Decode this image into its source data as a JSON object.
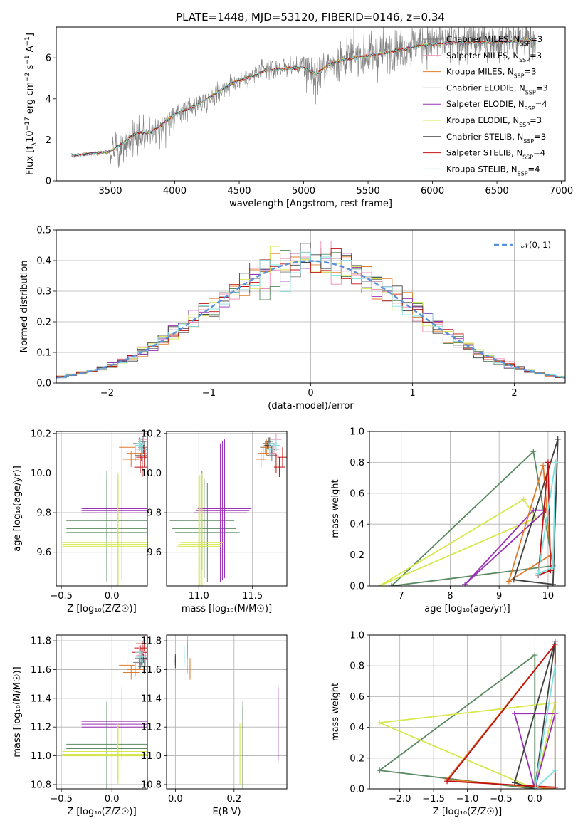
{
  "title": "PLATE=1448, MJD=53120, FIBERID=0146, z=0.34",
  "colors": {
    "data": "#808080",
    "normal_curve": "#5b8fd9",
    "grid": "#b0b0b0"
  },
  "models": [
    {
      "name": "Chabrier MILES",
      "nssp": "3",
      "color": "#7a7a7a",
      "z": [
        0.27,
        0.32,
        0.29
      ],
      "age": [
        10.15,
        10.13,
        10.09
      ],
      "mass": [
        11.65,
        11.62,
        11.68
      ],
      "ebv": 0.04,
      "zerr": 0.06,
      "aerr": 0.03,
      "merr": 0.05
    },
    {
      "name": "Salpeter MILES",
      "nssp": "3",
      "color": "#f08bb4",
      "z": [
        0.31,
        0.29,
        0.33
      ],
      "age": [
        10.17,
        10.12,
        10.1
      ],
      "mass": [
        11.72,
        11.7,
        11.67
      ],
      "ebv": 0.04,
      "zerr": 0.05,
      "aerr": 0.03,
      "merr": 0.05
    },
    {
      "name": "Kroupa MILES",
      "nssp": "3",
      "color": "#e07b2a",
      "z": [
        0.15,
        0.23,
        0.19
      ],
      "age": [
        10.13,
        10.1,
        10.07
      ],
      "mass": [
        11.63,
        11.6,
        11.58
      ],
      "ebv": 0.05,
      "zerr": 0.08,
      "aerr": 0.04,
      "merr": 0.05
    },
    {
      "name": "Chabrier ELODIE",
      "nssp": "3",
      "color": "#5a8a60",
      "z": [
        -0.05,
        -0.05,
        -0.05
      ],
      "age": [
        9.72,
        9.76,
        9.7
      ],
      "mass": [
        11.05,
        11.03,
        11.08
      ],
      "ebv": 0.23,
      "zerr": 0.4,
      "aerr": 0.25,
      "merr": 0.3
    },
    {
      "name": "Salpeter ELODIE",
      "nssp": "4",
      "color": "#9a2fb5",
      "z": [
        0.1,
        0.1,
        0.1
      ],
      "age": [
        9.81,
        9.8,
        9.82
      ],
      "mass": [
        11.22,
        11.2,
        11.24
      ],
      "ebv": 0.35,
      "zerr": 0.4,
      "aerr": 0.35,
      "merr": 0.25
    },
    {
      "name": "Kroupa ELODIE",
      "nssp": "3",
      "color": "#d6e84a",
      "z": [
        0.06,
        0.06,
        0.06
      ],
      "age": [
        9.64,
        9.63,
        9.65
      ],
      "mass": [
        11.01,
        11.0,
        11.03
      ],
      "ebv": 0.22,
      "zerr": 0.55,
      "aerr": 0.35,
      "merr": 0.2
    },
    {
      "name": "Chabrier STELIB",
      "nssp": "3",
      "color": "#404040",
      "z": [
        0.3,
        0.28,
        0.31
      ],
      "age": [
        10.16,
        10.14,
        10.12
      ],
      "mass": [
        11.66,
        11.64,
        11.68
      ],
      "ebv": 0.0,
      "zerr": 0.04,
      "aerr": 0.02,
      "merr": 0.03
    },
    {
      "name": "Salpeter STELIB",
      "nssp": "4",
      "color": "#c01010",
      "z": [
        0.3,
        0.28,
        0.32
      ],
      "age": [
        10.03,
        10.05,
        10.08
      ],
      "mass": [
        11.75,
        11.72,
        11.78
      ],
      "ebv": 0.04,
      "zerr": 0.08,
      "aerr": 0.05,
      "merr": 0.05
    },
    {
      "name": "Kroupa STELIB",
      "nssp": "4",
      "color": "#7fe0e0",
      "z": [
        0.28,
        0.3,
        0.27
      ],
      "age": [
        10.15,
        10.12,
        10.14
      ],
      "mass": [
        11.69,
        11.66,
        11.72
      ],
      "ebv": 0.03,
      "zerr": 0.04,
      "aerr": 0.03,
      "merr": 0.04
    }
  ],
  "panels": {
    "spectrum": {
      "xlabel": "wavelength [Angstrom, rest frame]",
      "ylabel_html": "Flux [f<tspan baseline-shift=\"sub\" font-size=\"9\">λ</tspan>10<tspan baseline-shift=\"super\" font-size=\"9\">−17</tspan> erg cm<tspan baseline-shift=\"super\" font-size=\"9\">−2</tspan> s<tspan baseline-shift=\"super\" font-size=\"9\">−1</tspan> A<tspan baseline-shift=\"super\" font-size=\"9\">−1</tspan>]",
      "xticks": [
        "3500",
        "4000",
        "4500",
        "5000",
        "5500",
        "6000",
        "6500",
        "7000"
      ],
      "yticks": [
        "0",
        "2",
        "4",
        "6"
      ],
      "xlim": [
        3080,
        7030
      ],
      "ylim": [
        0,
        7.5
      ]
    },
    "hist": {
      "xlabel": "(data-model)/error",
      "ylabel": "Normed distribution",
      "xticks": [
        "−2",
        "−1",
        "0",
        "1",
        "2"
      ],
      "yticks": [
        "0.0",
        "0.1",
        "0.2",
        "0.3",
        "0.4",
        "0.5"
      ],
      "legend": "𝒩(0, 1)",
      "xlim": [
        -2.5,
        2.5
      ],
      "ylim": [
        0,
        0.5
      ]
    },
    "z_age": {
      "xlabel": "Z [log₁₀(Z/Z☉)]",
      "ylabel": "age  [log₁₀(age/yr)]",
      "xticks": [
        "−0.5",
        "0.0"
      ],
      "yticks": [
        "9.6",
        "9.8",
        "10.0",
        "10.2"
      ],
      "xlim": [
        -0.55,
        0.35
      ],
      "ylim": [
        9.43,
        10.21
      ]
    },
    "mass_age": {
      "xlabel": "mass [log₁₀(M/M☉)]",
      "xticks": [
        "11.0",
        "11.5"
      ],
      "yticks": [
        "9.6",
        "9.8",
        "10.0",
        "10.2"
      ],
      "xlim": [
        10.7,
        11.82
      ],
      "ylim": [
        9.43,
        10.21
      ]
    },
    "age_mw": {
      "xlabel": "age  [log₁₀(age/yr)]",
      "ylabel": "mass weight",
      "xticks": [
        "7",
        "8",
        "9",
        "10"
      ],
      "yticks": [
        "0.0",
        "0.2",
        "0.4",
        "0.6",
        "0.8",
        "1.0"
      ],
      "xlim": [
        6.35,
        10.35
      ],
      "ylim": [
        0,
        1.0
      ]
    },
    "z_mass": {
      "xlabel": "Z [log₁₀(Z/Z☉)]",
      "ylabel": "mass [log₁₀(M/M☉)]",
      "xticks": [
        "−0.5",
        "0.0"
      ],
      "yticks": [
        "10.8",
        "11.0",
        "11.2",
        "11.4",
        "11.6",
        "11.8"
      ],
      "xlim": [
        -0.55,
        0.35
      ],
      "ylim": [
        10.77,
        11.84
      ]
    },
    "ebv_mass": {
      "xlabel": "E(B-V)",
      "xticks": [
        "0.0",
        "0.2"
      ],
      "yticks": [
        "10.8",
        "11.0",
        "11.2",
        "11.4",
        "11.6",
        "11.8"
      ],
      "xlim": [
        -0.03,
        0.38
      ],
      "ylim": [
        10.77,
        11.84
      ]
    },
    "z_mw": {
      "xlabel": "Z [log₁₀(Z/Z☉)]",
      "ylabel": "mass weight",
      "xticks": [
        "−2.0",
        "−1.5",
        "−1.0",
        "−0.5",
        "0.0"
      ],
      "yticks": [
        "0.0",
        "0.2",
        "0.4",
        "0.6",
        "0.8",
        "1.0"
      ],
      "xlim": [
        -2.45,
        0.45
      ],
      "ylim": [
        0,
        1.0
      ]
    }
  },
  "chart_data": [
    {
      "type": "line",
      "title": "PLATE=1448, MJD=53120, FIBERID=0146, z=0.34",
      "xlabel": "wavelength [Angstrom, rest frame]",
      "ylabel": "Flux [f_λ 10^-17 erg cm^-2 s^-1 A^-1]",
      "xlim": [
        3080,
        7030
      ],
      "ylim": [
        0,
        7.5
      ],
      "legend": "top-right",
      "x": [
        3200,
        3300,
        3400,
        3500,
        3600,
        3700,
        3800,
        3900,
        4000,
        4100,
        4200,
        4300,
        4400,
        4500,
        4600,
        4700,
        4800,
        4900,
        5000,
        5100,
        5200,
        5300,
        5400,
        5500,
        5600,
        5700,
        5800,
        5900,
        6000,
        6100,
        6200,
        6300,
        6400,
        6500,
        6600,
        6700,
        6800
      ],
      "series": [
        {
          "name": "data",
          "values": [
            1.2,
            1.3,
            1.35,
            1.4,
            1.8,
            2.3,
            2.3,
            2.7,
            3.2,
            3.5,
            3.8,
            4.2,
            4.6,
            4.9,
            5.1,
            5.4,
            5.5,
            5.5,
            5.6,
            5.1,
            5.7,
            5.9,
            6.1,
            6.1,
            6.3,
            6.4,
            6.5,
            6.7,
            6.7,
            6.8,
            6.8,
            6.8,
            6.8,
            6.9,
            6.9,
            6.9,
            7.0
          ]
        },
        {
          "name": "models",
          "values": [
            1.25,
            1.3,
            1.35,
            1.45,
            1.85,
            2.35,
            2.35,
            2.75,
            3.25,
            3.5,
            3.8,
            4.2,
            4.6,
            4.9,
            5.1,
            5.35,
            5.45,
            5.5,
            5.55,
            5.2,
            5.7,
            5.9,
            6.0,
            6.1,
            6.2,
            6.35,
            6.45,
            6.6,
            6.65,
            6.7,
            6.75,
            6.75,
            6.75,
            6.8,
            6.8,
            6.85,
            6.9
          ]
        }
      ]
    },
    {
      "type": "bar",
      "title": "",
      "xlabel": "(data-model)/error",
      "ylabel": "Normed distribution",
      "xlim": [
        -2.5,
        2.5
      ],
      "ylim": [
        0,
        0.5
      ],
      "series": [
        {
          "name": "𝒩(0, 1)",
          "mean": 0,
          "sigma": 1
        }
      ]
    },
    {
      "type": "scatter",
      "xlabel": "age [log10(age/yr)]",
      "ylabel": "mass weight",
      "series": [
        {
          "name": "Chabrier ELODIE",
          "x": [
            6.8,
            9.7,
            10.1
          ],
          "y": [
            0.0,
            0.87,
            0.13
          ]
        },
        {
          "name": "Kroupa ELODIE",
          "x": [
            6.55,
            9.5,
            9.75
          ],
          "y": [
            0.0,
            0.56,
            0.44
          ]
        },
        {
          "name": "Salpeter ELODIE",
          "x": [
            8.3,
            9.7,
            9.95
          ],
          "y": [
            0.01,
            0.49,
            0.49
          ]
        },
        {
          "name": "Kroupa MILES",
          "x": [
            9.2,
            9.9,
            10.05
          ],
          "y": [
            0.03,
            0.78,
            0.2
          ]
        },
        {
          "name": "Chabrier STELIB",
          "x": [
            9.3,
            10.2,
            10.1
          ],
          "y": [
            0.04,
            0.95,
            0.01
          ]
        },
        {
          "name": "Salpeter STELIB",
          "x": [
            9.8,
            10.0,
            10.05
          ],
          "y": [
            0.07,
            0.8,
            0.1
          ]
        },
        {
          "name": "Kroupa STELIB",
          "x": [
            9.8,
            10.15,
            10.1
          ],
          "y": [
            0.08,
            0.8,
            0.12
          ]
        }
      ]
    },
    {
      "type": "scatter",
      "xlabel": "Z [log10(Z/Z_sun)]",
      "ylabel": "mass weight",
      "series": [
        {
          "name": "Chabrier ELODIE",
          "x": [
            -2.3,
            0.0,
            0.0
          ],
          "y": [
            0.12,
            0.87,
            0.0
          ]
        },
        {
          "name": "Kroupa ELODIE",
          "x": [
            -2.3,
            0.0,
            0.3
          ],
          "y": [
            0.43,
            0.0,
            0.56
          ]
        },
        {
          "name": "Salpeter ELODIE",
          "x": [
            -0.3,
            0.0,
            0.3
          ],
          "y": [
            0.49,
            0.0,
            0.49
          ]
        },
        {
          "name": "Kroupa MILES",
          "x": [
            -1.3,
            0.3,
            0.3
          ],
          "y": [
            0.06,
            0.94,
            0.0
          ]
        },
        {
          "name": "Chabrier STELIB",
          "x": [
            -0.3,
            0.0,
            0.3
          ],
          "y": [
            0.04,
            0.0,
            0.96
          ]
        },
        {
          "name": "Salpeter STELIB",
          "x": [
            -1.3,
            0.3,
            0.3
          ],
          "y": [
            0.05,
            0.94,
            0.01
          ]
        },
        {
          "name": "Kroupa STELIB",
          "x": [
            0.0,
            0.3,
            0.3
          ],
          "y": [
            0.0,
            0.8,
            0.12
          ]
        }
      ]
    }
  ]
}
